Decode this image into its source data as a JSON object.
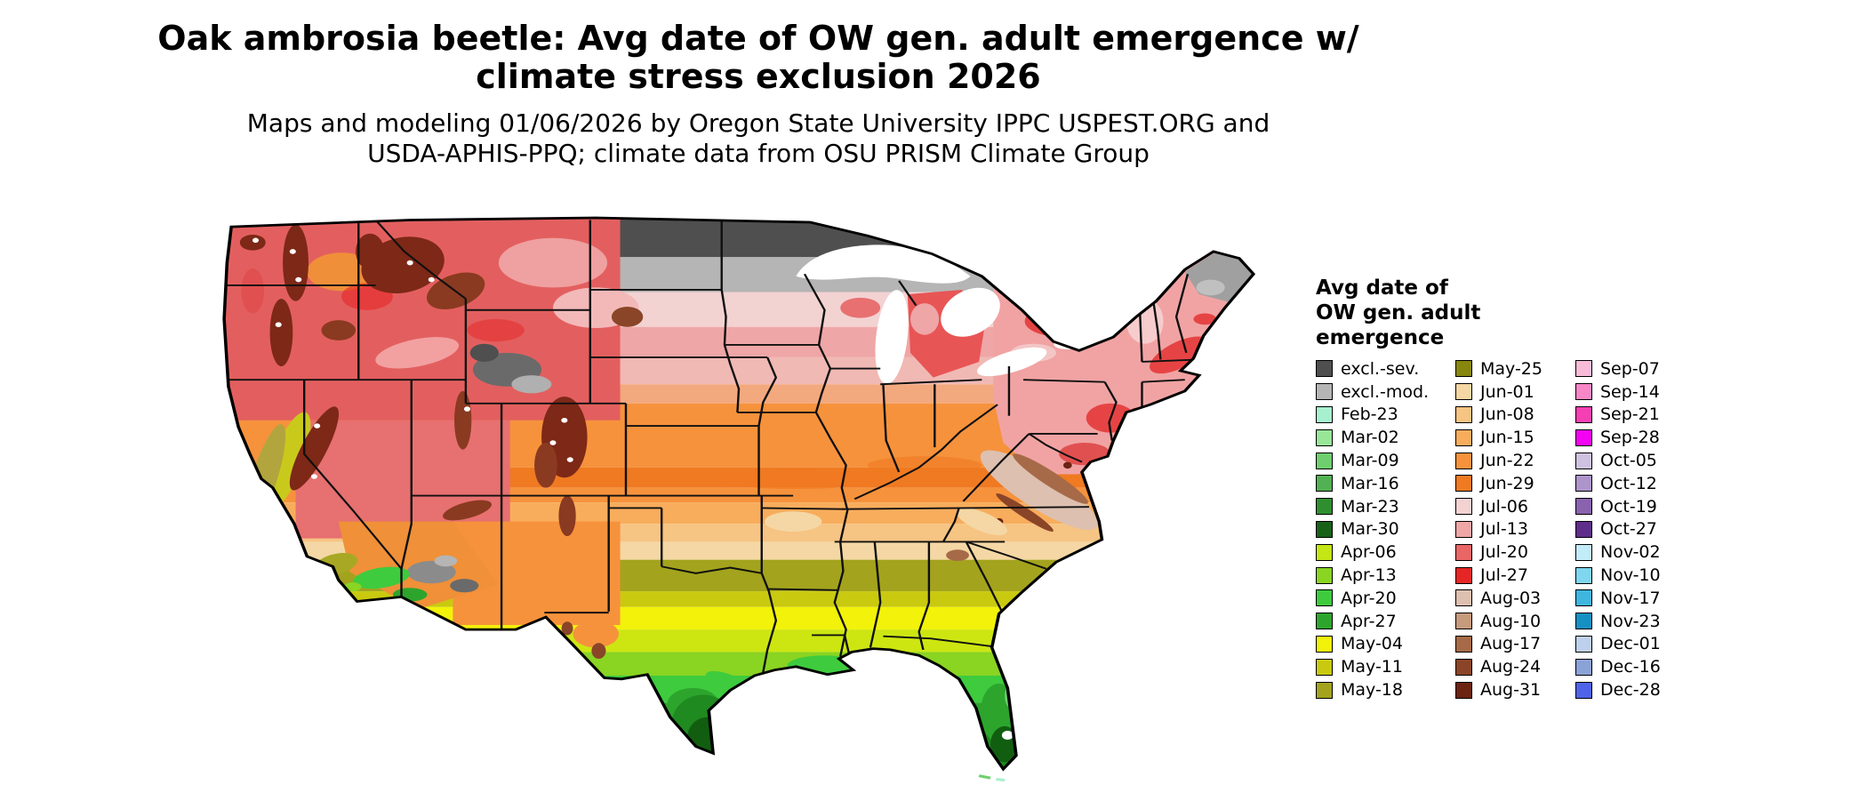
{
  "header": {
    "title_line1": "Oak ambrosia beetle: Avg date of OW gen. adult emergence w/",
    "title_line2": "climate stress exclusion 2026",
    "subtitle_line1": "Maps and modeling 01/06/2026 by Oregon State University IPPC USPEST.ORG and",
    "subtitle_line2": "USDA-APHIS-PPQ; climate data from OSU PRISM Climate Group"
  },
  "legend": {
    "title_lines": [
      "Avg date of",
      "OW gen. adult",
      "emergence"
    ],
    "columns": [
      [
        {
          "label": "excl.-sev.",
          "color": "#4f4f4f"
        },
        {
          "label": "excl.-mod.",
          "color": "#b5b5b5"
        },
        {
          "label": "Feb-23",
          "color": "#a7f0cf"
        },
        {
          "label": "Mar-02",
          "color": "#98e698"
        },
        {
          "label": "Mar-09",
          "color": "#6fcf6f"
        },
        {
          "label": "Mar-16",
          "color": "#52b152"
        },
        {
          "label": "Mar-23",
          "color": "#2f8f2f"
        },
        {
          "label": "Mar-30",
          "color": "#186218"
        },
        {
          "label": "Apr-06",
          "color": "#c3e614"
        },
        {
          "label": "Apr-13",
          "color": "#8ad422"
        },
        {
          "label": "Apr-20",
          "color": "#3ecb3e"
        },
        {
          "label": "Apr-27",
          "color": "#2da52d"
        },
        {
          "label": "May-04",
          "color": "#f2f20a"
        },
        {
          "label": "May-11",
          "color": "#c9c910"
        },
        {
          "label": "May-18",
          "color": "#a3a31d"
        }
      ],
      [
        {
          "label": "May-25",
          "color": "#87870f"
        },
        {
          "label": "Jun-01",
          "color": "#f4d7a4"
        },
        {
          "label": "Jun-08",
          "color": "#f6c483"
        },
        {
          "label": "Jun-15",
          "color": "#f8ad5c"
        },
        {
          "label": "Jun-22",
          "color": "#f6923c"
        },
        {
          "label": "Jun-29",
          "color": "#f07a22"
        },
        {
          "label": "Jul-06",
          "color": "#f3d2d2"
        },
        {
          "label": "Jul-13",
          "color": "#efa6a6"
        },
        {
          "label": "Jul-20",
          "color": "#e96666"
        },
        {
          "label": "Jul-27",
          "color": "#e62626"
        },
        {
          "label": "Aug-03",
          "color": "#ddc0b0"
        },
        {
          "label": "Aug-10",
          "color": "#c59a7d"
        },
        {
          "label": "Aug-17",
          "color": "#a66a48"
        },
        {
          "label": "Aug-24",
          "color": "#8a4528"
        },
        {
          "label": "Aug-31",
          "color": "#6b2312"
        }
      ],
      [
        {
          "label": "Sep-07",
          "color": "#f8bcd8"
        },
        {
          "label": "Sep-14",
          "color": "#f787c7"
        },
        {
          "label": "Sep-21",
          "color": "#f540b3"
        },
        {
          "label": "Sep-28",
          "color": "#f303f3"
        },
        {
          "label": "Oct-05",
          "color": "#cfc2e0"
        },
        {
          "label": "Oct-12",
          "color": "#ad94ca"
        },
        {
          "label": "Oct-19",
          "color": "#8a62ae"
        },
        {
          "label": "Oct-27",
          "color": "#5f2e8a"
        },
        {
          "label": "Nov-02",
          "color": "#c2ecf8"
        },
        {
          "label": "Nov-10",
          "color": "#7fd6ef"
        },
        {
          "label": "Nov-17",
          "color": "#3eb6de"
        },
        {
          "label": "Nov-23",
          "color": "#1690c2"
        },
        {
          "label": "Dec-01",
          "color": "#bdd1ed"
        },
        {
          "label": "Dec-16",
          "color": "#8ba2d6"
        },
        {
          "label": "Dec-28",
          "color": "#4f63e8"
        }
      ]
    ]
  },
  "map": {
    "region": "Contiguous United States",
    "band_colors_north_to_south": [
      "#4f4f4f",
      "#b5b5b5",
      "#f3d2d2",
      "#efa6a6",
      "#f6923c",
      "#f8ad5c",
      "#f4d7a4",
      "#a3a31d",
      "#f2f20a",
      "#8ad422",
      "#3ecb3e",
      "#2da52d",
      "#1f8a1f"
    ]
  }
}
